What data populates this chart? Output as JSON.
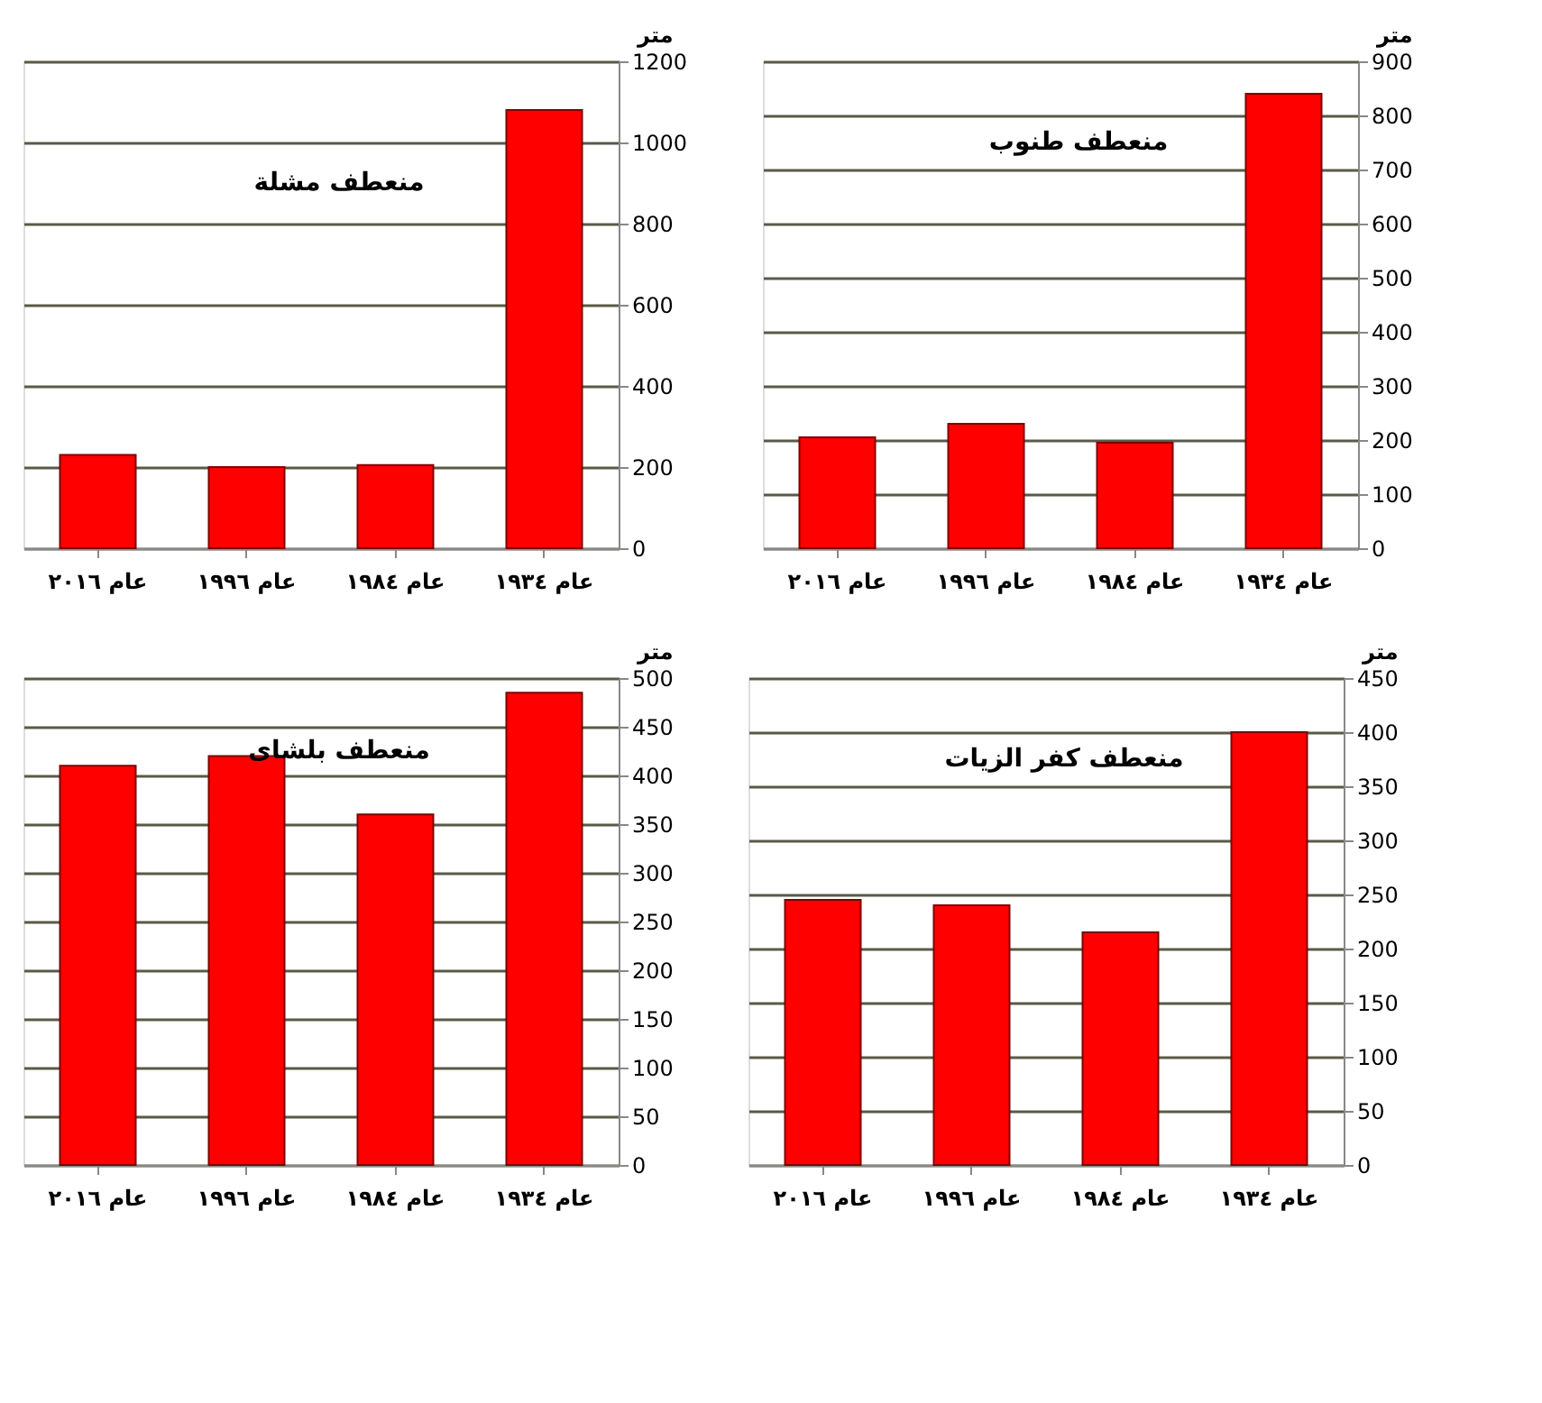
{
  "chart_data": [
    {
      "type": "bar",
      "title": "منعطف مشلة",
      "ylabel": "متر",
      "categories": [
        "عام ٢٠١٦",
        "عام ١٩٩٦",
        "عام ١٩٨٤",
        "عام ١٩٣٤"
      ],
      "values": [
        230,
        200,
        205,
        1080
      ],
      "color": "#ff0000",
      "ylim": [
        0,
        1200
      ],
      "yticks": [
        0,
        200,
        400,
        600,
        800,
        1000,
        1200
      ],
      "grid": "y"
    },
    {
      "type": "bar",
      "title": "منعطف طنوب",
      "ylabel": "متر",
      "categories": [
        "عام ٢٠١٦",
        "عام ١٩٩٦",
        "عام ١٩٨٤",
        "عام ١٩٣٤"
      ],
      "values": [
        205,
        230,
        195,
        840
      ],
      "color": "#ff0000",
      "ylim": [
        0,
        900
      ],
      "yticks": [
        0,
        100,
        200,
        300,
        400,
        500,
        600,
        700,
        800,
        900
      ],
      "grid": "y"
    },
    {
      "type": "bar",
      "title": "منعطف بلشاى",
      "ylabel": "متر",
      "categories": [
        "عام ٢٠١٦",
        "عام ١٩٩٦",
        "عام ١٩٨٤",
        "عام ١٩٣٤"
      ],
      "values": [
        410,
        420,
        360,
        485
      ],
      "color": "#ff0000",
      "ylim": [
        0,
        500
      ],
      "yticks": [
        0,
        50,
        100,
        150,
        200,
        250,
        300,
        350,
        400,
        450,
        500
      ],
      "grid": "y"
    },
    {
      "type": "bar",
      "title": "منعطف كفر الزيات",
      "ylabel": "متر",
      "categories": [
        "عام ٢٠١٦",
        "عام ١٩٩٦",
        "عام ١٩٨٤",
        "عام ١٩٣٤"
      ],
      "values": [
        245,
        240,
        215,
        400
      ],
      "color": "#ff0000",
      "ylim": [
        0,
        450
      ],
      "yticks": [
        0,
        50,
        100,
        150,
        200,
        250,
        300,
        350,
        400,
        450
      ],
      "grid": "y"
    }
  ]
}
